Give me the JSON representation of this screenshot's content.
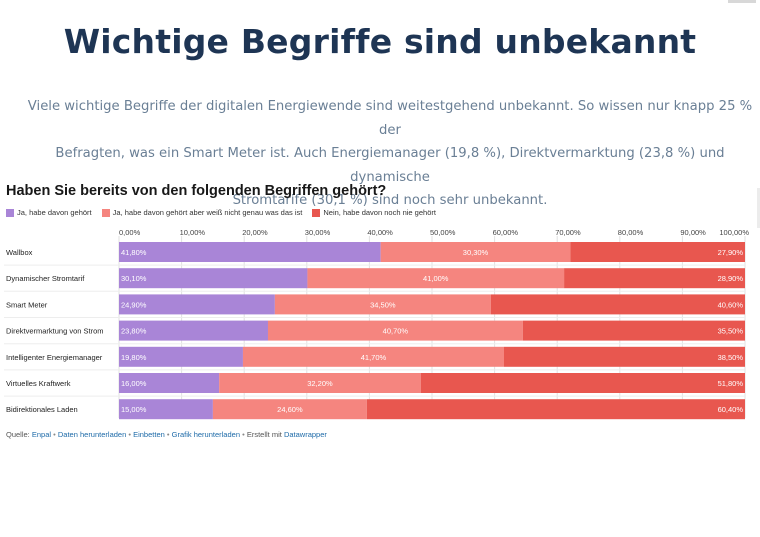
{
  "title": "Wichtige Begriffe sind unbekannt",
  "intro_lines": [
    "Viele wichtige Begriffe der digitalen Energiewende sind weitestgehend unbekannt. So wissen nur knapp 25 % der",
    "Befragten, was ein Smart Meter ist. Auch Energiemanager (19,8 %), Direktvermarktung (23,8 %) und dynamische",
    "Stromtarife (30,1 %) sind noch sehr unbekannt."
  ],
  "chart_data": {
    "type": "bar",
    "orientation": "horizontal",
    "stacked": true,
    "title": "Haben Sie bereits von den folgenden Begriffen gehört?",
    "categories": [
      "Wallbox",
      "Dynamischer Stromtarif",
      "Smart Meter",
      "Direktvermarktung von Strom",
      "Intelligenter Energiemanager",
      "Virtuelles Kraftwerk",
      "Bidirektionales Laden"
    ],
    "series": [
      {
        "name": "Ja, habe davon gehört",
        "color": "#a985d7",
        "values": [
          41.8,
          30.1,
          24.9,
          23.8,
          19.8,
          16.0,
          15.0
        ],
        "labels": [
          "41,80%",
          "30,10%",
          "24,90%",
          "23,80%",
          "19,80%",
          "16,00%",
          "15,00%"
        ]
      },
      {
        "name": "Ja, habe davon gehört aber weiß nicht genau was das ist",
        "color": "#f5857f",
        "values": [
          30.3,
          41.0,
          34.5,
          40.7,
          41.7,
          32.2,
          24.6
        ],
        "labels": [
          "30,30%",
          "41,00%",
          "34,50%",
          "40,70%",
          "41,70%",
          "32,20%",
          "24,60%"
        ]
      },
      {
        "name": "Nein, habe davon noch nie gehört",
        "color": "#e8574f",
        "values": [
          27.9,
          28.9,
          40.6,
          35.5,
          38.5,
          51.8,
          60.4
        ],
        "labels": [
          "27,90%",
          "28,90%",
          "40,60%",
          "35,50%",
          "38,50%",
          "51,80%",
          "60,40%"
        ]
      }
    ],
    "xlim": [
      0,
      100
    ],
    "xticks": [
      "0,00%",
      "10,00%",
      "20,00%",
      "30,00%",
      "40,00%",
      "50,00%",
      "60,00%",
      "70,00%",
      "80,00%",
      "90,00%",
      "100,00%"
    ],
    "grid": true,
    "legend_position": "top-left"
  },
  "footer": {
    "source_prefix": "Quelle:",
    "source": "Enpal",
    "download_data": "Daten herunterladen",
    "embed": "Einbetten",
    "download_graphic": "Grafik herunterladen",
    "created_with_prefix": "Erstellt mit",
    "created_with": "Datawrapper"
  }
}
